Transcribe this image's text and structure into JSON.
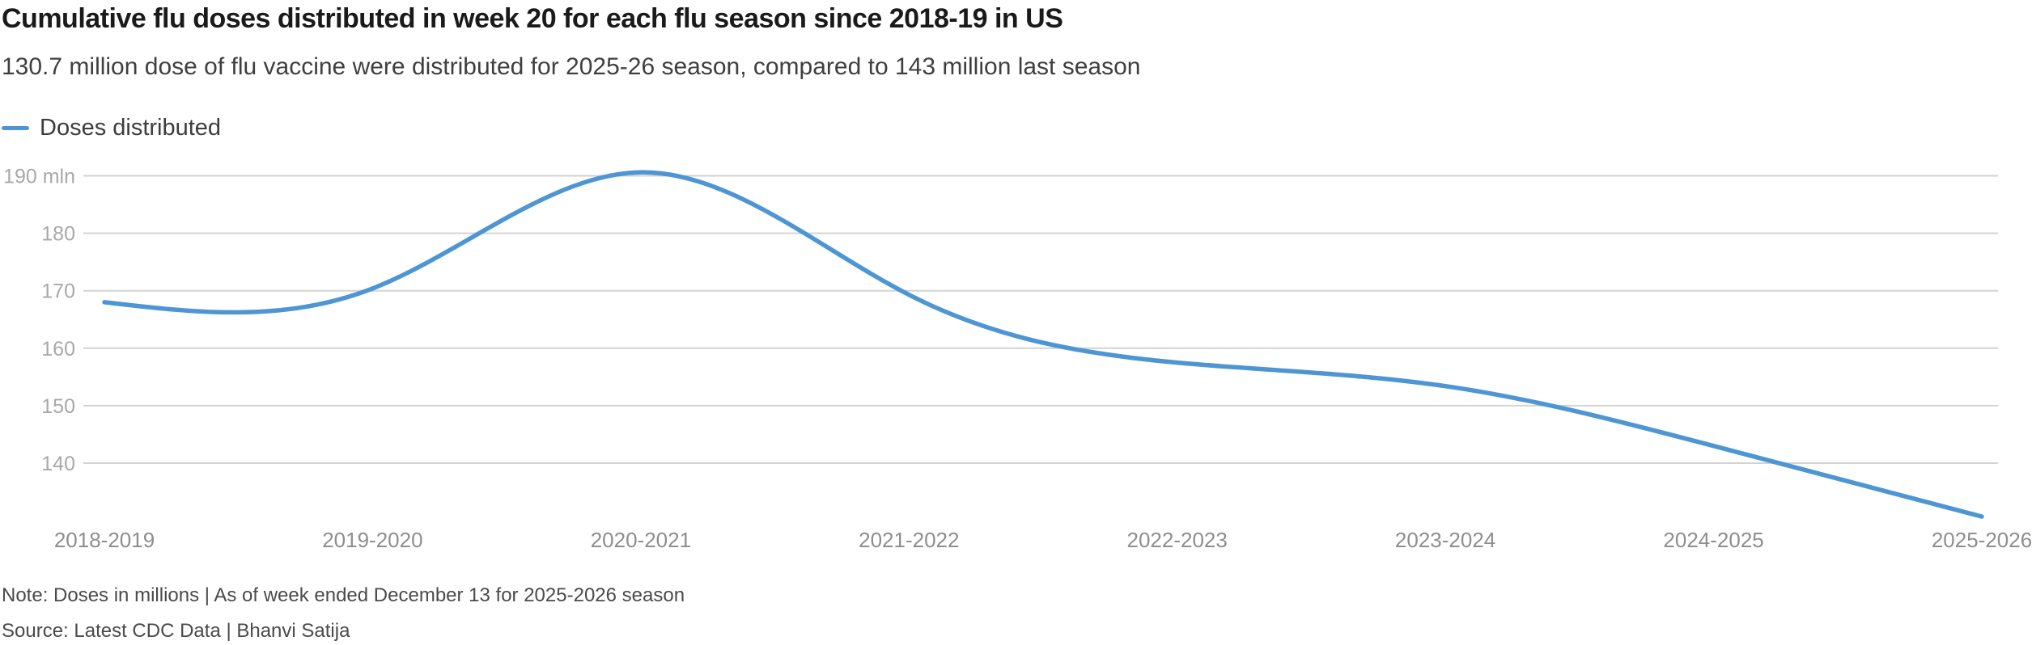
{
  "header": {
    "title": "Cumulative flu doses distributed in week 20 for each flu season since 2018-19 in US",
    "subtitle": "130.7 million dose of flu vaccine were distributed for 2025-26 season, compared to 143 million last season"
  },
  "legend": {
    "items": [
      {
        "label": "Doses distributed",
        "color": "#4e96d3"
      }
    ]
  },
  "chart_data": {
    "type": "line",
    "title": "Cumulative flu doses distributed in week 20 for each flu season since 2018-19 in US",
    "categories": [
      "2018-2019",
      "2019-2020",
      "2020-2021",
      "2021-2022",
      "2022-2023",
      "2023-2024",
      "2024-2025",
      "2025-2026"
    ],
    "series": [
      {
        "name": "Doses distributed",
        "values": [
          168,
          170.4,
          190.6,
          169.3,
          157.5,
          153.4,
          143,
          130.7
        ]
      }
    ],
    "unit": "mln",
    "xlabel": "",
    "ylabel": "",
    "y_ticks": [
      190,
      180,
      170,
      160,
      150,
      140
    ],
    "y_tick_unit_suffix_on_first": " mln",
    "ylim_visible": [
      128,
      195
    ],
    "grid": "horizontal-only",
    "curve": "natural-spline",
    "legend_position": "top-left",
    "line_color": "#4e96d3",
    "gridline_color": "#d3d3d3",
    "y_tick_color": "#a8a8a8",
    "x_tick_color": "#8e8e8e"
  },
  "footer": {
    "note": "Note: Doses in millions | As of week ended December 13 for 2025-2026 season",
    "source": "Source: Latest CDC Data | Bhanvi Satija"
  },
  "colors": {
    "accent_line": "#4e96d3",
    "title_text": "#1a1a1a",
    "subtitle_text": "#3f3f3f",
    "footer_text": "#4a4a4a",
    "background": "#ffffff"
  }
}
